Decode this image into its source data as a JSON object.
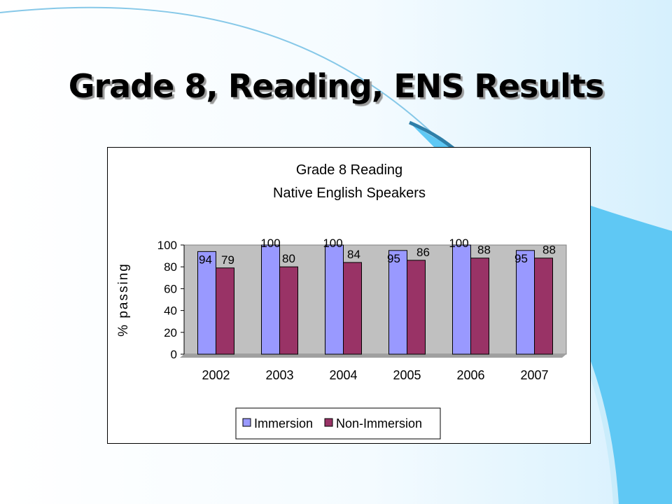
{
  "slide": {
    "title": "Grade 8, Reading, ENS Results"
  },
  "colors": {
    "background_accent": "#5fc8f4",
    "plot_area": "#c0c0c0",
    "immersion": "#9999ff",
    "non_immersion": "#993366"
  },
  "chart_data": {
    "type": "bar",
    "title": "Grade 8 Reading",
    "subtitle": "Native English Speakers",
    "xlabel": "",
    "ylabel": "% passing",
    "categories": [
      "2002",
      "2003",
      "2004",
      "2005",
      "2006",
      "2007"
    ],
    "series": [
      {
        "name": "Immersion",
        "color": "#9999ff",
        "values": [
          94,
          100,
          100,
          95,
          100,
          95
        ]
      },
      {
        "name": "Non-Immersion",
        "color": "#993366",
        "values": [
          79,
          80,
          84,
          86,
          88,
          88
        ]
      }
    ],
    "ylim": [
      0,
      100
    ],
    "yticks": [
      0,
      20,
      40,
      60,
      80,
      100
    ],
    "grid": false,
    "data_labels": true,
    "legend_position": "bottom"
  }
}
